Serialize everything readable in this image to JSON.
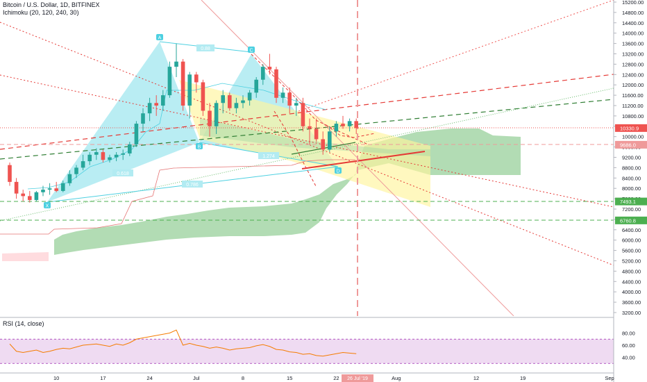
{
  "header": {
    "symbol": "Bitcoin / U.S. Dollar, 1D, BITFINEX",
    "indicator": "Ichimoku (20, 120, 240, 30)"
  },
  "rsi": {
    "label": "RSI (14, close)",
    "levels": [
      "80.00",
      "60.00",
      "40.00"
    ]
  },
  "price_axis": {
    "ticks": [
      "15200.00",
      "14800.00",
      "14400.00",
      "14000.00",
      "13600.00",
      "13200.00",
      "12800.00",
      "12400.00",
      "12000.00",
      "11600.00",
      "11200.00",
      "10800.00",
      "10400.00",
      "10000.00",
      "9600.00",
      "9200.00",
      "8800.00",
      "8400.00",
      "8000.00",
      "7600.00",
      "7200.00",
      "6800.00",
      "6400.00",
      "6000.00",
      "5600.00",
      "5200.00",
      "4800.00",
      "4400.00",
      "4000.00",
      "3600.00",
      "3200.00"
    ],
    "tags": [
      {
        "text": "10330.9",
        "bg": "#ef5350",
        "fg": "#ffffff"
      },
      {
        "text": "9686.0",
        "bg": "#ef9a9a",
        "fg": "#ffffff"
      },
      {
        "text": "7493.1",
        "bg": "#4caf50",
        "fg": "#ffffff"
      },
      {
        "text": "6760.8",
        "bg": "#4caf50",
        "fg": "#ffffff"
      }
    ]
  },
  "time_axis": {
    "ticks": [
      "10",
      "17",
      "24",
      "Jul",
      "8",
      "15",
      "22",
      "Aug",
      "12",
      "19",
      "Sep"
    ],
    "highlight": "26 Jul '19"
  },
  "pattern_labels": [
    "A",
    "B",
    "C",
    "D",
    "X"
  ],
  "fib_labels": [
    "0.88",
    "0.618",
    "1.274",
    "0.786"
  ],
  "chart_data": {
    "type": "candlestick",
    "title": "Bitcoin / U.S. Dollar, 1D, BITFINEX",
    "ylim": [
      3200,
      15200
    ],
    "rsi_ylim": [
      20,
      100
    ],
    "candles": [
      [
        8900,
        9000,
        8100,
        8250
      ],
      [
        8250,
        8400,
        7600,
        7800
      ],
      [
        7800,
        7950,
        7500,
        7700
      ],
      [
        7700,
        7900,
        7450,
        7550
      ],
      [
        7550,
        7900,
        7500,
        7850
      ],
      [
        7850,
        8100,
        7700,
        7950
      ],
      [
        7950,
        8200,
        7750,
        8000
      ],
      [
        8000,
        8250,
        7850,
        7900
      ],
      [
        7900,
        8300,
        7850,
        8200
      ],
      [
        8200,
        8700,
        8100,
        8550
      ],
      [
        8550,
        8900,
        8400,
        8800
      ],
      [
        8800,
        9300,
        8700,
        9050
      ],
      [
        9050,
        9400,
        8900,
        9300
      ],
      [
        9300,
        9550,
        9100,
        9400
      ],
      [
        9400,
        9500,
        9000,
        9100
      ],
      [
        9100,
        9300,
        9000,
        9200
      ],
      [
        9200,
        9400,
        9050,
        9300
      ],
      [
        9300,
        9500,
        9100,
        9350
      ],
      [
        9350,
        9800,
        9250,
        9700
      ],
      [
        9700,
        10600,
        9600,
        10500
      ],
      [
        10500,
        11100,
        10200,
        10900
      ],
      [
        10900,
        11500,
        10600,
        11300
      ],
      [
        11300,
        11600,
        10800,
        11200
      ],
      [
        11200,
        11800,
        11000,
        11600
      ],
      [
        11600,
        12900,
        11500,
        12700
      ],
      [
        12700,
        13600,
        12300,
        12900
      ],
      [
        12900,
        13000,
        11000,
        11200
      ],
      [
        11200,
        12500,
        10700,
        12400
      ],
      [
        12400,
        12500,
        11700,
        12100
      ],
      [
        12100,
        12200,
        10800,
        11000
      ],
      [
        11000,
        11300,
        10000,
        10400
      ],
      [
        10400,
        11400,
        10100,
        11300
      ],
      [
        11300,
        11800,
        10900,
        11600
      ],
      [
        11600,
        11700,
        11000,
        11100
      ],
      [
        11100,
        11500,
        10900,
        11300
      ],
      [
        11300,
        11600,
        11100,
        11400
      ],
      [
        11400,
        11800,
        11200,
        11700
      ],
      [
        11700,
        12300,
        11500,
        12200
      ],
      [
        12200,
        12800,
        12000,
        12700
      ],
      [
        12700,
        13200,
        12400,
        12600
      ],
      [
        12600,
        12700,
        11300,
        11500
      ],
      [
        11500,
        11900,
        11300,
        11700
      ],
      [
        11700,
        11900,
        10900,
        11200
      ],
      [
        11200,
        11500,
        10800,
        11300
      ],
      [
        11300,
        11500,
        10200,
        10400
      ],
      [
        10400,
        10700,
        9700,
        10300
      ],
      [
        10300,
        10700,
        9800,
        9900
      ],
      [
        9900,
        10200,
        9300,
        9500
      ],
      [
        9500,
        10400,
        9400,
        10200
      ],
      [
        10200,
        10600,
        10000,
        10500
      ],
      [
        10500,
        10800,
        10300,
        10400
      ],
      [
        10400,
        10700,
        10200,
        10600
      ],
      [
        10600,
        10700,
        10100,
        10330
      ]
    ],
    "rsi": [
      62,
      50,
      48,
      50,
      52,
      48,
      50,
      53,
      55,
      54,
      57,
      60,
      61,
      62,
      60,
      58,
      62,
      60,
      64,
      70,
      72,
      74,
      76,
      78,
      80,
      85,
      60,
      63,
      60,
      58,
      55,
      57,
      55,
      52,
      54,
      55,
      56,
      59,
      61,
      58,
      53,
      52,
      49,
      48,
      45,
      46,
      43,
      42,
      44,
      46,
      48,
      47,
      46
    ]
  }
}
